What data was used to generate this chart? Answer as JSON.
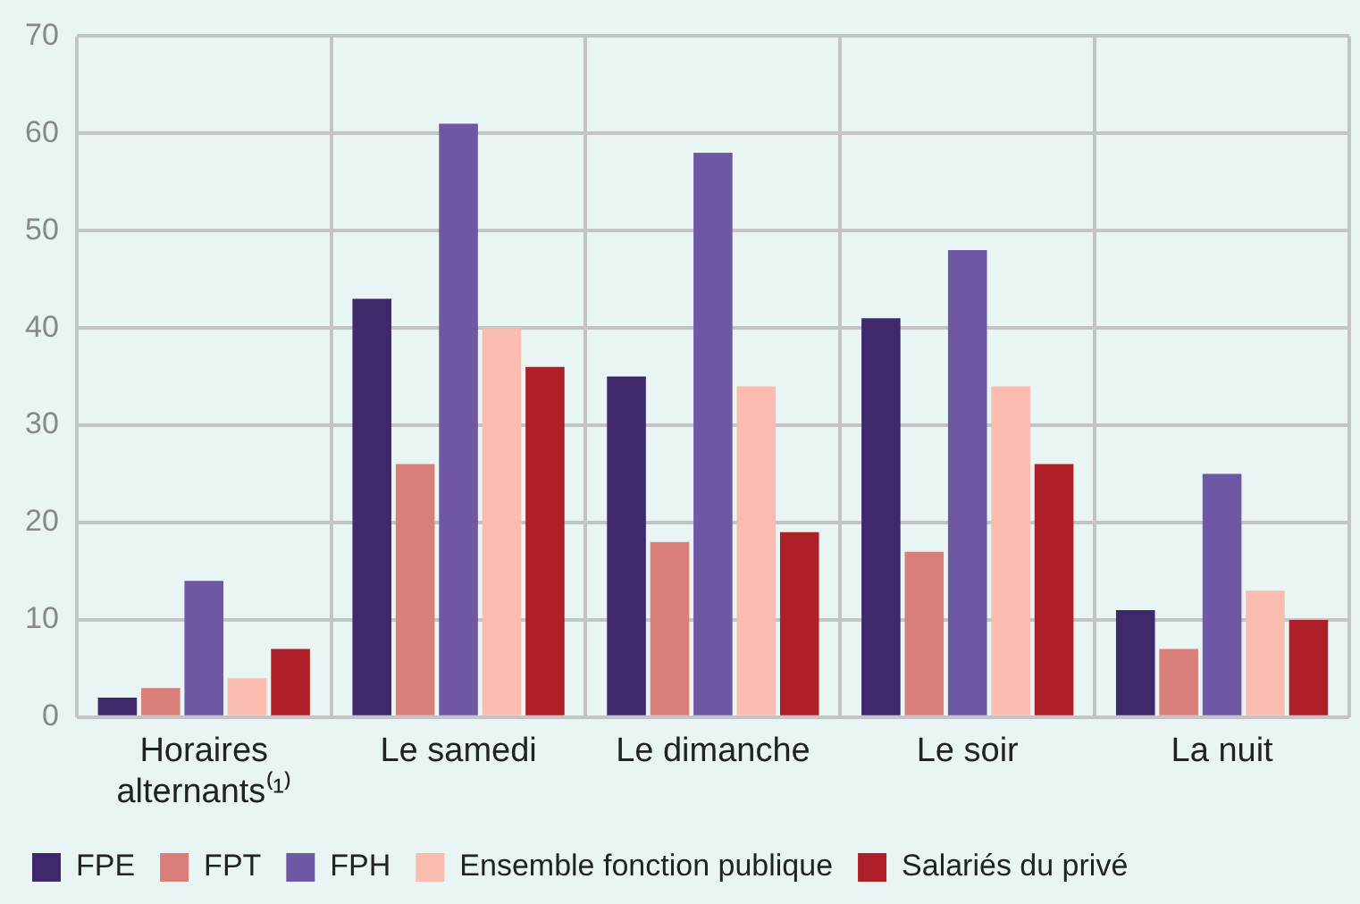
{
  "chart_data": {
    "type": "bar",
    "categories": [
      "Horaires alternants⁽¹⁾",
      "Le samedi",
      "Le dimanche",
      "Le soir",
      "La nuit"
    ],
    "series": [
      {
        "name": "FPE",
        "color": "#40296b",
        "values": [
          2,
          43,
          35,
          41,
          11
        ]
      },
      {
        "name": "FPT",
        "color": "#d97f79",
        "values": [
          3,
          26,
          18,
          17,
          7
        ]
      },
      {
        "name": "FPH",
        "color": "#6e58a3",
        "values": [
          14,
          61,
          58,
          48,
          25
        ]
      },
      {
        "name": "Ensemble fonction publique",
        "color": "#fabcae",
        "values": [
          4,
          40,
          34,
          34,
          13
        ]
      },
      {
        "name": "Salariés du privé",
        "color": "#ae1f27",
        "values": [
          7,
          36,
          19,
          26,
          10
        ]
      }
    ],
    "ylim": [
      0,
      70
    ],
    "yticks": [
      0,
      10,
      20,
      30,
      40,
      50,
      60,
      70
    ],
    "grid": true,
    "legend": "bottom"
  }
}
